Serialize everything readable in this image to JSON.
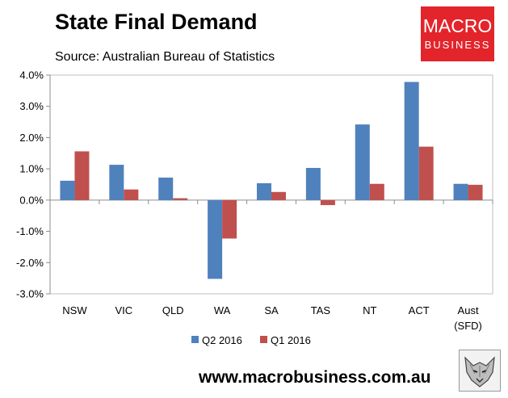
{
  "title": "State Final Demand",
  "subtitle": "Source: Australian Bureau of Statistics",
  "logo": {
    "line1": "MACRO",
    "line2": "BUSINESS",
    "color": "#e3242b"
  },
  "footer": "www.macrobusiness.com.au",
  "chart_data": {
    "type": "bar",
    "categories": [
      "NSW",
      "VIC",
      "QLD",
      "WA",
      "SA",
      "TAS",
      "NT",
      "ACT",
      [
        "Aust",
        "(SFD)"
      ]
    ],
    "series": [
      {
        "name": "Q2 2016",
        "color": "#4f81bd",
        "values": [
          0.62,
          1.13,
          0.72,
          -2.52,
          0.54,
          1.03,
          2.42,
          3.78,
          0.52
        ]
      },
      {
        "name": "Q1 2016",
        "color": "#c0504d",
        "values": [
          1.56,
          0.34,
          0.06,
          -1.23,
          0.26,
          -0.16,
          0.52,
          1.71,
          0.49
        ]
      }
    ],
    "yticks": [
      "4.0%",
      "3.0%",
      "2.0%",
      "1.0%",
      "0.0%",
      "-1.0%",
      "-2.0%",
      "-3.0%"
    ],
    "ylim": [
      -3,
      4
    ],
    "legend": "bottom",
    "grid": false
  }
}
